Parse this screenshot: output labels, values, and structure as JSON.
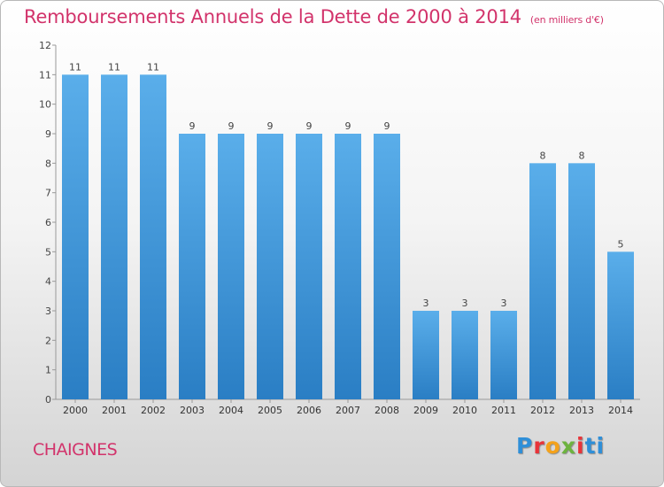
{
  "header": {
    "title": "Remboursements Annuels de la Dette de 2000 à 2014",
    "unit": "(en milliers d'€)"
  },
  "footer": {
    "commune": "CHAIGNES",
    "logo": "Proxiti"
  },
  "colors": {
    "accent": "#d2336b",
    "bar_top": "#5aaeea",
    "bar_bottom": "#2a7ec4"
  },
  "chart_data": {
    "type": "bar",
    "title": "Remboursements Annuels de la Dette de 2000 à 2014",
    "xlabel": "",
    "ylabel": "",
    "ylim": [
      0,
      12
    ],
    "yticks": [
      0,
      1,
      2,
      3,
      4,
      5,
      6,
      7,
      8,
      9,
      10,
      11,
      12
    ],
    "grid": false,
    "categories": [
      "2000",
      "2001",
      "2002",
      "2003",
      "2004",
      "2005",
      "2006",
      "2007",
      "2008",
      "2009",
      "2010",
      "2011",
      "2012",
      "2013",
      "2014"
    ],
    "values": [
      11,
      11,
      11,
      9,
      9,
      9,
      9,
      9,
      9,
      3,
      3,
      3,
      8,
      8,
      5
    ]
  }
}
